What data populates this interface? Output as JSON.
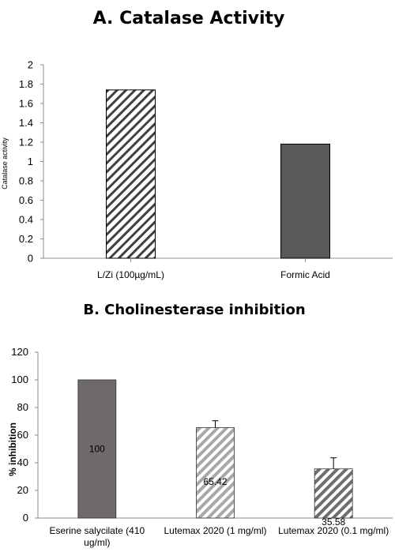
{
  "chart_data": [
    {
      "type": "bar",
      "title": "A. Catalase Activity",
      "xlabel": "",
      "ylabel": "Catalase activity",
      "ylim": [
        0,
        2
      ],
      "yticks": [
        "0",
        "0.2",
        "0.4",
        "0.6",
        "0.8",
        "1",
        "1.2",
        "1.4",
        "1.6",
        "1.8",
        "2"
      ],
      "categories": [
        "L/Zi (100µg/mL)",
        "Formic Acid"
      ],
      "values": [
        1.74,
        1.18
      ],
      "fills": [
        "hatch",
        "solid"
      ],
      "colors": {
        "solid": "#595959",
        "hatch": "#404040"
      },
      "grid": false
    },
    {
      "type": "bar",
      "title": "B. Cholinesterase inhibition",
      "xlabel": "",
      "ylabel": "% inhibition",
      "ylim": [
        0,
        120
      ],
      "yticks": [
        "0",
        "20",
        "40",
        "60",
        "80",
        "100",
        "120"
      ],
      "categories": [
        [
          "Eserine salycilate  (410",
          "ug/ml)"
        ],
        [
          "Lutemax 2020 (1 mg/ml)"
        ],
        [
          "Lutemax 2020 (0.1 mg/ml)"
        ]
      ],
      "values": [
        100,
        65.42,
        35.58
      ],
      "error": [
        0,
        5,
        8
      ],
      "data_labels": [
        "100",
        "65.42",
        "35.58"
      ],
      "fills": [
        "solid",
        "hatch-light",
        "hatch-dark"
      ],
      "colors": {
        "solid": "#6f6a6a",
        "hatch-light": "#a8a8a8",
        "hatch-dark": "#6e6e6e"
      },
      "grid": false
    }
  ]
}
